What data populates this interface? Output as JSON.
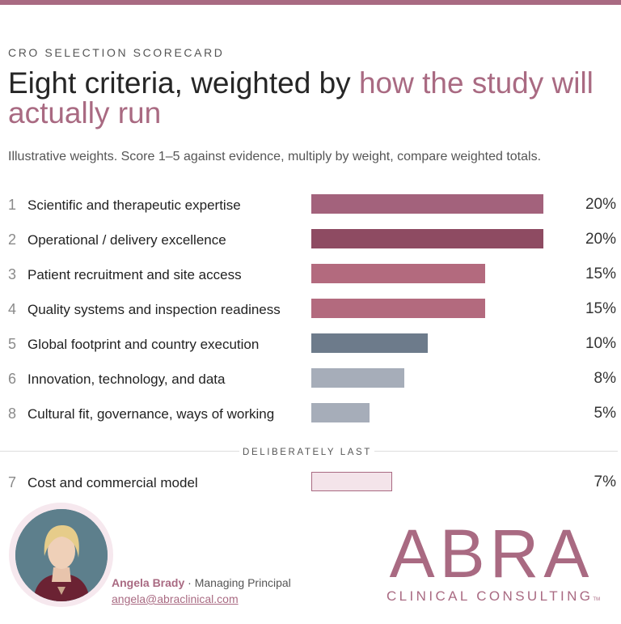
{
  "header": {
    "eyebrow": "CRO SELECTION SCORECARD",
    "title_plain": "Eight criteria, weighted by ",
    "title_accent": "how the study will actually run",
    "subtitle": "Illustrative weights. Score 1–5 against evidence, multiply by weight, compare weighted totals."
  },
  "chart_data": {
    "type": "bar",
    "orientation": "horizontal",
    "categories": [
      "Scientific and therapeutic expertise",
      "Operational / delivery excellence",
      "Patient recruitment and site access",
      "Quality systems and inspection readiness",
      "Global footprint and country execution",
      "Innovation, technology, and data",
      "Cultural fit, governance, ways of working",
      "Cost and commercial model"
    ],
    "ranks": [
      "1",
      "2",
      "3",
      "4",
      "5",
      "6",
      "8",
      "7"
    ],
    "values": [
      20,
      20,
      15,
      15,
      10,
      8,
      5,
      7
    ],
    "value_labels": [
      "20%",
      "20%",
      "15%",
      "15%",
      "10%",
      "8%",
      "5%",
      "7%"
    ],
    "bar_colors": [
      "#a3627c",
      "#8e4b62",
      "#b36a7e",
      "#b36a7e",
      "#6d7b8b",
      "#a6adb9",
      "#a6adb9",
      "#f4e4ea"
    ],
    "xlim": [
      0,
      20
    ],
    "separator_label": "DELIBERATELY LAST",
    "separated_from_index": 7
  },
  "contact": {
    "name": "Angela Brady",
    "separator": " · ",
    "role": "Managing Principal",
    "email": "angela@abraclinical.com"
  },
  "logo": {
    "word": "ABRA",
    "subline": "CLINICAL CONSULTING",
    "trademark": "TM"
  },
  "colors": {
    "accent": "#a96a82",
    "text": "#262626",
    "muted": "#555555"
  }
}
